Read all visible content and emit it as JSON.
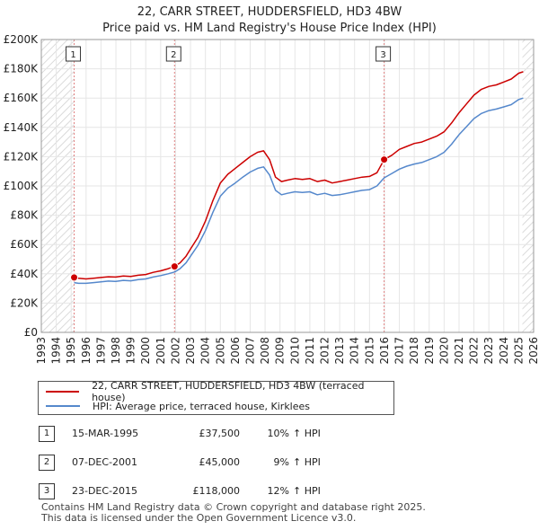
{
  "chart_data": {
    "type": "line",
    "title": "22, CARR STREET, HUDDERSFIELD, HD3 4BW",
    "subtitle": "Price paid vs. HM Land Registry's House Price Index (HPI)",
    "xlim": [
      1993,
      2026
    ],
    "ylim": [
      0,
      200000
    ],
    "x_ticks": [
      "1993",
      "1994",
      "1995",
      "1996",
      "1997",
      "1998",
      "1999",
      "2000",
      "2001",
      "2002",
      "2003",
      "2004",
      "2005",
      "2006",
      "2007",
      "2008",
      "2009",
      "2010",
      "2011",
      "2012",
      "2013",
      "2014",
      "2015",
      "2016",
      "2017",
      "2018",
      "2019",
      "2020",
      "2021",
      "2022",
      "2023",
      "2024",
      "2025",
      "2026"
    ],
    "y_ticks": [
      {
        "value": 0,
        "label": "£0"
      },
      {
        "value": 20000,
        "label": "£20K"
      },
      {
        "value": 40000,
        "label": "£40K"
      },
      {
        "value": 60000,
        "label": "£60K"
      },
      {
        "value": 80000,
        "label": "£80K"
      },
      {
        "value": 100000,
        "label": "£100K"
      },
      {
        "value": 120000,
        "label": "£120K"
      },
      {
        "value": 140000,
        "label": "£140K"
      },
      {
        "value": 160000,
        "label": "£160K"
      },
      {
        "value": 180000,
        "label": "£180K"
      },
      {
        "value": 200000,
        "label": "£200K"
      }
    ],
    "grid": true,
    "series": [
      {
        "name": "22, CARR STREET, HUDDERSFIELD, HD3 4BW (terraced house)",
        "color": "#cc0000",
        "x": [
          1995.2,
          1995.5,
          1996,
          1996.5,
          1997,
          1997.5,
          1998,
          1998.5,
          1999,
          1999.5,
          2000,
          2000.5,
          2001,
          2001.5,
          2001.93,
          2002.3,
          2002.7,
          2003,
          2003.5,
          2004,
          2004.5,
          2005,
          2005.5,
          2006,
          2006.5,
          2007,
          2007.5,
          2007.9,
          2008.3,
          2008.7,
          2009.1,
          2009.5,
          2010,
          2010.5,
          2011,
          2011.5,
          2012,
          2012.5,
          2013,
          2013.5,
          2014,
          2014.5,
          2015,
          2015.5,
          2015.98,
          2016.5,
          2017,
          2017.5,
          2018,
          2018.5,
          2019,
          2019.5,
          2020,
          2020.5,
          2021,
          2021.5,
          2022,
          2022.5,
          2023,
          2023.5,
          2024,
          2024.5,
          2025,
          2025.3
        ],
        "values": [
          37500,
          37000,
          36500,
          37000,
          37500,
          38000,
          37800,
          38500,
          38200,
          39000,
          39500,
          41000,
          42000,
          43500,
          45000,
          47500,
          52000,
          57000,
          65000,
          76000,
          90000,
          102000,
          108000,
          112000,
          116000,
          120000,
          123000,
          124000,
          118000,
          106000,
          103000,
          104000,
          105000,
          104500,
          105000,
          103000,
          104000,
          102000,
          103000,
          104000,
          105000,
          106000,
          106500,
          109000,
          118000,
          121000,
          125000,
          127000,
          129000,
          130000,
          132000,
          134000,
          137000,
          143000,
          150000,
          156000,
          162000,
          166000,
          168000,
          169000,
          171000,
          173000,
          177000,
          178000
        ]
      },
      {
        "name": "HPI: Average price, terraced house, Kirklees",
        "color": "#5588cc",
        "x": [
          1995.2,
          1995.5,
          1996,
          1996.5,
          1997,
          1997.5,
          1998,
          1998.5,
          1999,
          1999.5,
          2000,
          2000.5,
          2001,
          2001.5,
          2001.93,
          2002.3,
          2002.7,
          2003,
          2003.5,
          2004,
          2004.5,
          2005,
          2005.5,
          2006,
          2006.5,
          2007,
          2007.5,
          2007.9,
          2008.3,
          2008.7,
          2009.1,
          2009.5,
          2010,
          2010.5,
          2011,
          2011.5,
          2012,
          2012.5,
          2013,
          2013.5,
          2014,
          2014.5,
          2015,
          2015.5,
          2015.98,
          2016.5,
          2017,
          2017.5,
          2018,
          2018.5,
          2019,
          2019.5,
          2020,
          2020.5,
          2021,
          2021.5,
          2022,
          2022.5,
          2023,
          2023.5,
          2024,
          2024.5,
          2025,
          2025.3
        ],
        "values": [
          34000,
          33500,
          33500,
          34000,
          34500,
          35000,
          34800,
          35500,
          35200,
          36000,
          36500,
          37800,
          38800,
          40000,
          41200,
          43500,
          47500,
          52000,
          59500,
          69500,
          82000,
          93000,
          98500,
          102000,
          106000,
          109500,
          112000,
          113000,
          107500,
          97000,
          94000,
          95000,
          96000,
          95500,
          96000,
          94000,
          95000,
          93500,
          94000,
          95000,
          96000,
          97000,
          97500,
          100000,
          105500,
          108500,
          111500,
          113500,
          115000,
          116000,
          118000,
          120000,
          123000,
          128500,
          135000,
          140500,
          146000,
          149500,
          151500,
          152500,
          154000,
          155500,
          159000,
          160000
        ]
      }
    ],
    "sales": [
      {
        "label": "1",
        "x": 1995.2,
        "price": 37500
      },
      {
        "label": "2",
        "x": 2001.93,
        "price": 45000
      },
      {
        "label": "3",
        "x": 2015.98,
        "price": 118000
      }
    ],
    "shaded_regions": [
      [
        1993,
        1995.2
      ],
      [
        2025.25,
        2026
      ]
    ]
  },
  "legend": {
    "property_label": "22, CARR STREET, HUDDERSFIELD, HD3 4BW (terraced house)",
    "hpi_label": "HPI: Average price, terraced house, Kirklees"
  },
  "sales_table": [
    {
      "num": "1",
      "date": "15-MAR-1995",
      "price": "£37,500",
      "pct": "10%",
      "rel": "↑ HPI"
    },
    {
      "num": "2",
      "date": "07-DEC-2001",
      "price": "£45,000",
      "pct": "9%",
      "rel": "↑ HPI"
    },
    {
      "num": "3",
      "date": "23-DEC-2015",
      "price": "£118,000",
      "pct": "12%",
      "rel": "↑ HPI"
    }
  ],
  "footer": {
    "line1": "Contains HM Land Registry data © Crown copyright and database right 2025.",
    "line2": "This data is licensed under the Open Government Licence v3.0."
  }
}
